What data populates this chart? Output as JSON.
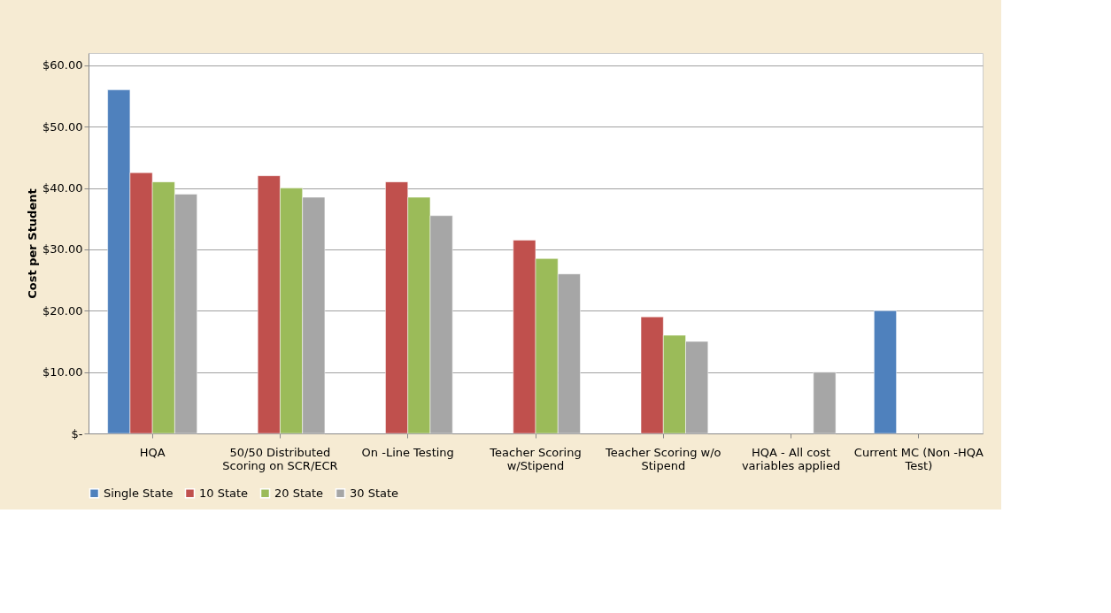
{
  "chart_data": {
    "type": "bar",
    "ylabel": "Cost per Student",
    "categories": [
      "HQA",
      "50/50 Distributed Scoring on SCR/ECR",
      "On -Line Testing",
      "Teacher Scoring w/Stipend",
      "Teacher Scoring w/o Stipend",
      "HQA -  All cost variables applied",
      "Current MC (Non -HQA Test)"
    ],
    "series": [
      {
        "name": "Single State",
        "color": "#4f81bd",
        "values": [
          56,
          null,
          null,
          null,
          null,
          null,
          20
        ]
      },
      {
        "name": "10 State",
        "color": "#c0504d",
        "values": [
          42.5,
          42,
          41,
          31.5,
          19,
          null,
          null
        ]
      },
      {
        "name": "20 State",
        "color": "#9bbb59",
        "values": [
          41,
          40,
          38.5,
          28.5,
          16,
          null,
          null
        ]
      },
      {
        "name": "30 State",
        "color": "#a6a6a6",
        "values": [
          39,
          38.5,
          35.5,
          26,
          15,
          10,
          null
        ]
      }
    ],
    "ylim": [
      0,
      62
    ],
    "yticks": [
      {
        "value": 0,
        "label": "$-"
      },
      {
        "value": 10,
        "label": "$10.00"
      },
      {
        "value": 20,
        "label": "$20.00"
      },
      {
        "value": 30,
        "label": "$30.00"
      },
      {
        "value": 40,
        "label": "$40.00"
      },
      {
        "value": 50,
        "label": "$50.00"
      },
      {
        "value": 60,
        "label": "$60.00"
      }
    ],
    "grid": "y",
    "legend": "bottom"
  }
}
